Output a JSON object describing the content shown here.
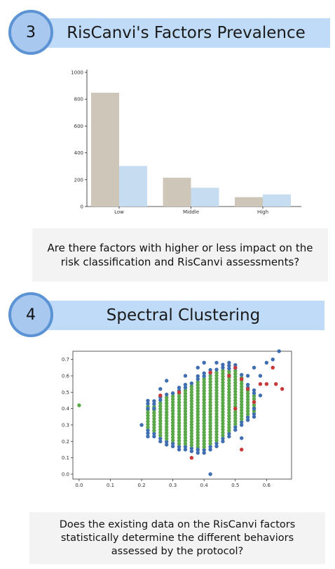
{
  "section3": {
    "number": "3",
    "title": "RisCanvi's Factors Prevalence",
    "question": "Are there factors with higher or less impact on the risk classification and RisCanvi assessments?"
  },
  "section4": {
    "number": "4",
    "title": "Spectral Clustering",
    "question": "Does the existing data on the RisCanvi factors statistically determine the different behaviors assessed by the protocol?"
  },
  "colors": {
    "header_bar": "#bfdbf7",
    "badge_fill": "#a8c8ef",
    "badge_border": "#5b93d4",
    "bar_series_1": "#cdc6b9",
    "bar_series_2": "#c6dcf1",
    "scatter_green": "#5aa84a",
    "scatter_blue": "#3f6fb0",
    "scatter_red": "#c8383a"
  },
  "chart_data": [
    {
      "type": "bar",
      "categories": [
        "Low",
        "Middle",
        "High"
      ],
      "series": [
        {
          "values": [
            848,
            215,
            70
          ]
        },
        {
          "values": [
            302,
            140,
            90
          ]
        }
      ],
      "ylim": [
        0,
        1000
      ],
      "yticks": [
        0,
        200,
        400,
        600,
        800,
        1000
      ],
      "grid": false
    },
    {
      "type": "scatter",
      "xlim": [
        -0.02,
        0.68
      ],
      "ylim": [
        -0.03,
        0.75
      ],
      "xticks": [
        0.0,
        0.1,
        0.2,
        0.3,
        0.4,
        0.5,
        0.6
      ],
      "yticks": [
        0.0,
        0.1,
        0.2,
        0.3,
        0.4,
        0.5,
        0.6,
        0.7
      ],
      "grid": false,
      "columns": [
        {
          "x": 0.22,
          "ymin": 0.25,
          "ymax": 0.45
        },
        {
          "x": 0.24,
          "ymin": 0.23,
          "ymax": 0.45
        },
        {
          "x": 0.26,
          "ymin": 0.2,
          "ymax": 0.47
        },
        {
          "x": 0.28,
          "ymin": 0.18,
          "ymax": 0.5
        },
        {
          "x": 0.3,
          "ymin": 0.17,
          "ymax": 0.51
        },
        {
          "x": 0.32,
          "ymin": 0.15,
          "ymax": 0.53
        },
        {
          "x": 0.34,
          "ymin": 0.15,
          "ymax": 0.55
        },
        {
          "x": 0.36,
          "ymin": 0.14,
          "ymax": 0.57
        },
        {
          "x": 0.38,
          "ymin": 0.13,
          "ymax": 0.6
        },
        {
          "x": 0.4,
          "ymin": 0.13,
          "ymax": 0.62
        },
        {
          "x": 0.42,
          "ymin": 0.15,
          "ymax": 0.64
        },
        {
          "x": 0.44,
          "ymin": 0.17,
          "ymax": 0.65
        },
        {
          "x": 0.46,
          "ymin": 0.2,
          "ymax": 0.67
        },
        {
          "x": 0.48,
          "ymin": 0.23,
          "ymax": 0.67
        },
        {
          "x": 0.5,
          "ymin": 0.27,
          "ymax": 0.67
        },
        {
          "x": 0.52,
          "ymin": 0.3,
          "ymax": 0.62
        },
        {
          "x": 0.54,
          "ymin": 0.33,
          "ymax": 0.55
        },
        {
          "x": 0.56,
          "ymin": 0.35,
          "ymax": 0.52
        }
      ],
      "extra_points": [
        {
          "x": 0.0,
          "y": 0.42,
          "cluster": "green"
        },
        {
          "x": 0.2,
          "y": 0.3,
          "cluster": "blue"
        },
        {
          "x": 0.22,
          "y": 0.23,
          "cluster": "blue"
        },
        {
          "x": 0.26,
          "y": 0.52,
          "cluster": "blue"
        },
        {
          "x": 0.28,
          "y": 0.57,
          "cluster": "blue"
        },
        {
          "x": 0.34,
          "y": 0.6,
          "cluster": "blue"
        },
        {
          "x": 0.38,
          "y": 0.65,
          "cluster": "blue"
        },
        {
          "x": 0.4,
          "y": 0.68,
          "cluster": "blue"
        },
        {
          "x": 0.42,
          "y": 0.0,
          "cluster": "blue"
        },
        {
          "x": 0.44,
          "y": 0.68,
          "cluster": "blue"
        },
        {
          "x": 0.48,
          "y": 0.68,
          "cluster": "blue"
        },
        {
          "x": 0.52,
          "y": 0.22,
          "cluster": "blue"
        },
        {
          "x": 0.54,
          "y": 0.6,
          "cluster": "blue"
        },
        {
          "x": 0.56,
          "y": 0.65,
          "cluster": "blue"
        },
        {
          "x": 0.58,
          "y": 0.6,
          "cluster": "blue"
        },
        {
          "x": 0.6,
          "y": 0.68,
          "cluster": "blue"
        },
        {
          "x": 0.62,
          "y": 0.7,
          "cluster": "blue"
        },
        {
          "x": 0.64,
          "y": 0.75,
          "cluster": "blue"
        },
        {
          "x": 0.58,
          "y": 0.48,
          "cluster": "blue"
        },
        {
          "x": 0.56,
          "y": 0.4,
          "cluster": "blue"
        },
        {
          "x": 0.24,
          "y": 0.4,
          "cluster": "blue"
        },
        {
          "x": 0.22,
          "y": 0.4,
          "cluster": "blue"
        },
        {
          "x": 0.38,
          "y": 0.15,
          "cluster": "blue"
        },
        {
          "x": 0.36,
          "y": 0.1,
          "cluster": "red"
        },
        {
          "x": 0.42,
          "y": 0.62,
          "cluster": "red"
        },
        {
          "x": 0.48,
          "y": 0.6,
          "cluster": "red"
        },
        {
          "x": 0.5,
          "y": 0.65,
          "cluster": "red"
        },
        {
          "x": 0.5,
          "y": 0.4,
          "cluster": "red"
        },
        {
          "x": 0.52,
          "y": 0.58,
          "cluster": "red"
        },
        {
          "x": 0.54,
          "y": 0.52,
          "cluster": "red"
        },
        {
          "x": 0.56,
          "y": 0.44,
          "cluster": "red"
        },
        {
          "x": 0.58,
          "y": 0.55,
          "cluster": "red"
        },
        {
          "x": 0.6,
          "y": 0.55,
          "cluster": "red"
        },
        {
          "x": 0.62,
          "y": 0.65,
          "cluster": "red"
        },
        {
          "x": 0.63,
          "y": 0.55,
          "cluster": "red"
        },
        {
          "x": 0.65,
          "y": 0.52,
          "cluster": "red"
        },
        {
          "x": 0.52,
          "y": 0.15,
          "cluster": "red"
        },
        {
          "x": 0.32,
          "y": 0.5,
          "cluster": "red"
        },
        {
          "x": 0.26,
          "y": 0.48,
          "cluster": "red"
        }
      ]
    }
  ]
}
